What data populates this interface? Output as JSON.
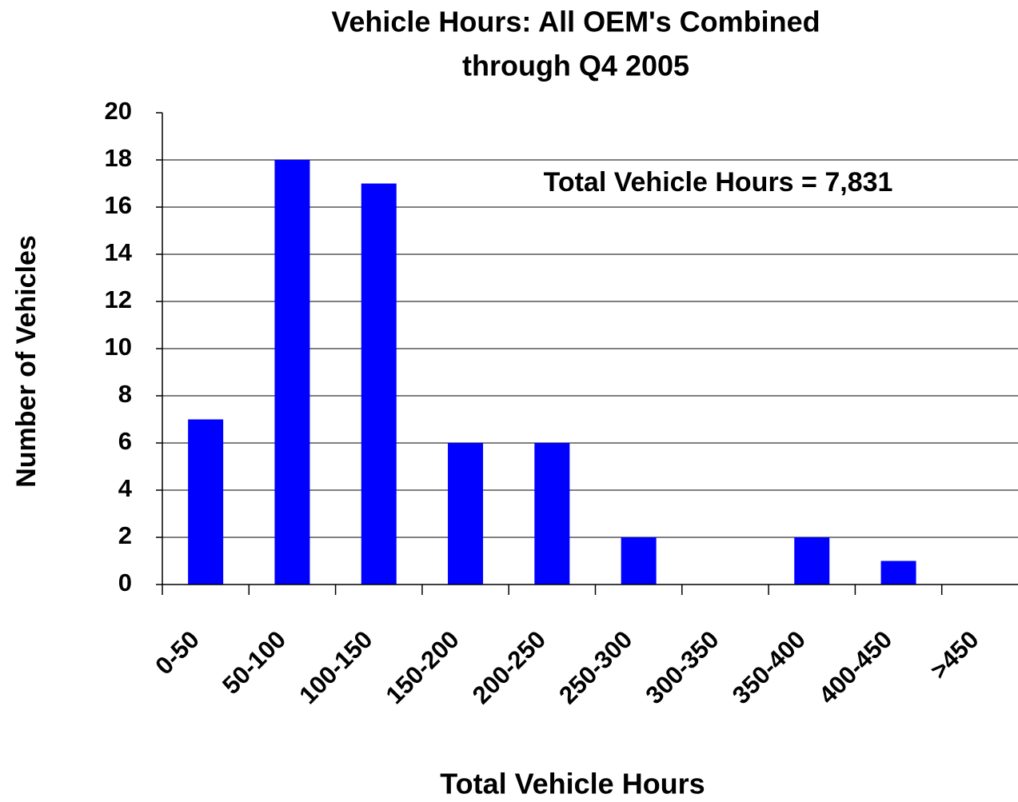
{
  "chart_data": {
    "type": "bar",
    "title": [
      "Vehicle Hours: All OEM's Combined",
      "through Q4 2005"
    ],
    "annotation": "Total Vehicle Hours = 7,831",
    "x_label": "Total Vehicle Hours",
    "y_label": "Number of Vehicles",
    "categories": [
      "0-50",
      "50-100",
      "100-150",
      "150-200",
      "200-250",
      "250-300",
      "300-350",
      "350-400",
      "400-450",
      ">450"
    ],
    "values": [
      7,
      18,
      17,
      6,
      6,
      2,
      0,
      2,
      1,
      0
    ],
    "color": "#0000ff",
    "ylim": [
      0,
      20
    ],
    "yticks": [
      0,
      2,
      4,
      6,
      8,
      10,
      12,
      14,
      16,
      18,
      20
    ],
    "grid": true
  }
}
